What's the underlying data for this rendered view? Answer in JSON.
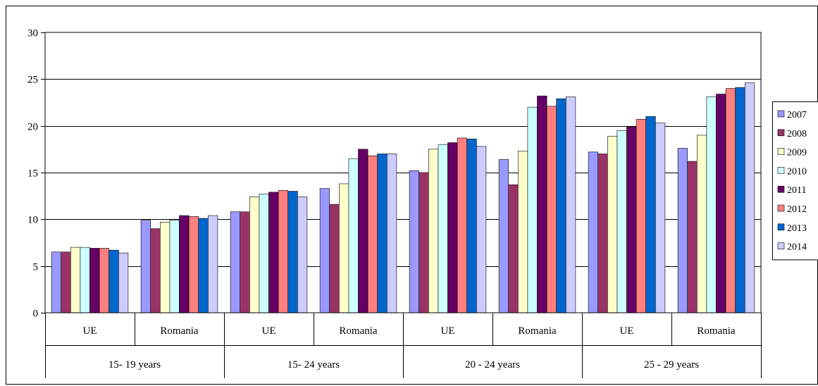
{
  "chart_data": {
    "type": "bar",
    "title": "",
    "xlabel": "",
    "ylabel": "",
    "ylim": [
      0,
      30
    ],
    "yticks": [
      0,
      5,
      10,
      15,
      20,
      25,
      30
    ],
    "grid": true,
    "legend_position": "right",
    "groups": [
      "15- 19 years",
      "15- 24 years",
      "20 - 24  years",
      "25 - 29 years"
    ],
    "categories": [
      "UE",
      "Romania",
      "UE",
      "Romania",
      "UE",
      "Romania",
      "UE",
      "Romania"
    ],
    "series": [
      {
        "name": "2007",
        "color": "#9999ff",
        "values": [
          6.5,
          9.9,
          10.8,
          13.3,
          15.2,
          16.4,
          17.2,
          17.6
        ]
      },
      {
        "name": "2008",
        "color": "#993366",
        "values": [
          6.5,
          9.0,
          10.8,
          11.6,
          15.0,
          13.7,
          17.0,
          16.2
        ]
      },
      {
        "name": "2009",
        "color": "#ffffcc",
        "values": [
          7.0,
          9.7,
          12.4,
          13.8,
          17.5,
          17.3,
          18.9,
          19.0
        ]
      },
      {
        "name": "2010",
        "color": "#ccffff",
        "values": [
          7.0,
          9.9,
          12.7,
          16.5,
          18.0,
          22.0,
          19.5,
          23.1
        ]
      },
      {
        "name": "2011",
        "color": "#660066",
        "values": [
          6.9,
          10.4,
          12.9,
          17.5,
          18.2,
          23.2,
          19.9,
          23.4
        ]
      },
      {
        "name": "2012",
        "color": "#ff8080",
        "values": [
          6.9,
          10.3,
          13.1,
          16.8,
          18.7,
          22.1,
          20.7,
          24.0
        ]
      },
      {
        "name": "2013",
        "color": "#0066cc",
        "values": [
          6.7,
          10.1,
          13.0,
          17.0,
          18.6,
          22.9,
          21.0,
          24.1
        ]
      },
      {
        "name": "2014",
        "color": "#ccccff",
        "values": [
          6.4,
          10.4,
          12.4,
          17.0,
          17.8,
          23.1,
          20.3,
          24.6
        ]
      }
    ]
  }
}
